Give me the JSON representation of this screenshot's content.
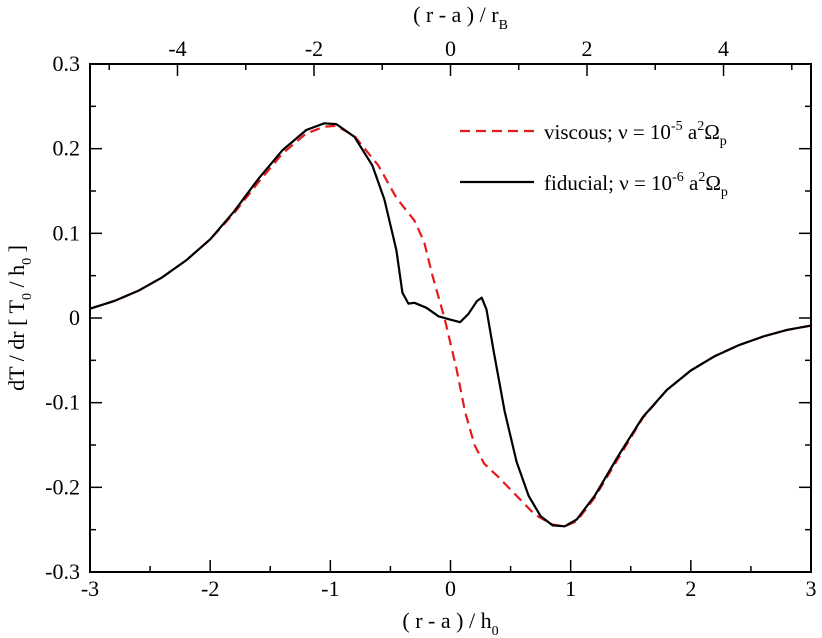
{
  "chart_data": {
    "type": "line",
    "xlabel_main": "( r - a ) / h",
    "xlabel_main_sub": "0",
    "xlabel_top": "( r - a ) / r",
    "xlabel_top_sub": "B",
    "ylabel_main": "dT / dr [ T",
    "ylabel_sub1": "0",
    "ylabel_mid": " / h",
    "ylabel_sub2": "0",
    "ylabel_end": " ]",
    "xlim": [
      -3,
      3
    ],
    "ylim": [
      -0.3,
      0.3
    ],
    "x_ticks": [
      {
        "value": -3,
        "label": "-3"
      },
      {
        "value": -2,
        "label": "-2"
      },
      {
        "value": -1,
        "label": "-1"
      },
      {
        "value": 0,
        "label": "0"
      },
      {
        "value": 1,
        "label": "1"
      },
      {
        "value": 2,
        "label": "2"
      },
      {
        "value": 3,
        "label": "3"
      }
    ],
    "y_ticks": [
      {
        "value": -0.3,
        "label": "-0.3"
      },
      {
        "value": -0.2,
        "label": "-0.2"
      },
      {
        "value": -0.1,
        "label": "-0.1"
      },
      {
        "value": 0,
        "label": "0"
      },
      {
        "value": 0.1,
        "label": "0.1"
      },
      {
        "value": 0.2,
        "label": "0.2"
      },
      {
        "value": 0.3,
        "label": "0.3"
      }
    ],
    "top_ticks": [
      {
        "value": -4,
        "label": "-4"
      },
      {
        "value": -2,
        "label": "-2"
      },
      {
        "value": 0,
        "label": "0"
      },
      {
        "value": 2,
        "label": "2"
      },
      {
        "value": 4,
        "label": "4"
      }
    ],
    "top_axis_scale": 0.568,
    "legend_placement": "top-right",
    "series": [
      {
        "name": "viscous",
        "legend_prefix": "viscous; ν = 10",
        "legend_exp": "-5",
        "legend_mid": " a",
        "legend_exp2": "2",
        "legend_omega": "Ω",
        "legend_sub": "p",
        "color": "#e41a1c",
        "dash": "10,6",
        "points": [
          [
            -3.0,
            0.011
          ],
          [
            -2.8,
            0.02
          ],
          [
            -2.6,
            0.032
          ],
          [
            -2.4,
            0.048
          ],
          [
            -2.2,
            0.068
          ],
          [
            -2.0,
            0.093
          ],
          [
            -1.8,
            0.124
          ],
          [
            -1.6,
            0.16
          ],
          [
            -1.4,
            0.194
          ],
          [
            -1.2,
            0.218
          ],
          [
            -1.05,
            0.226
          ],
          [
            -0.95,
            0.227
          ],
          [
            -0.8,
            0.215
          ],
          [
            -0.6,
            0.18
          ],
          [
            -0.45,
            0.142
          ],
          [
            -0.3,
            0.115
          ],
          [
            -0.22,
            0.09
          ],
          [
            -0.15,
            0.05
          ],
          [
            -0.05,
            0.0
          ],
          [
            0.05,
            -0.06
          ],
          [
            0.12,
            -0.11
          ],
          [
            0.2,
            -0.15
          ],
          [
            0.28,
            -0.172
          ],
          [
            0.4,
            -0.188
          ],
          [
            0.55,
            -0.21
          ],
          [
            0.7,
            -0.232
          ],
          [
            0.85,
            -0.244
          ],
          [
            0.95,
            -0.246
          ],
          [
            1.05,
            -0.24
          ],
          [
            1.2,
            -0.212
          ],
          [
            1.4,
            -0.165
          ],
          [
            1.6,
            -0.118
          ],
          [
            1.8,
            -0.085
          ],
          [
            2.0,
            -0.062
          ],
          [
            2.2,
            -0.045
          ],
          [
            2.4,
            -0.032
          ],
          [
            2.6,
            -0.022
          ],
          [
            2.8,
            -0.014
          ],
          [
            3.0,
            -0.009
          ]
        ]
      },
      {
        "name": "fiducial",
        "legend_prefix": "fiducial; ν = 10",
        "legend_exp": "-6",
        "legend_mid": " a",
        "legend_exp2": "2",
        "legend_omega": "Ω",
        "legend_sub": "p",
        "color": "#000000",
        "dash": "",
        "points": [
          [
            -3.0,
            0.011
          ],
          [
            -2.8,
            0.02
          ],
          [
            -2.6,
            0.032
          ],
          [
            -2.4,
            0.048
          ],
          [
            -2.2,
            0.068
          ],
          [
            -2.0,
            0.093
          ],
          [
            -1.8,
            0.126
          ],
          [
            -1.6,
            0.164
          ],
          [
            -1.4,
            0.198
          ],
          [
            -1.2,
            0.222
          ],
          [
            -1.05,
            0.23
          ],
          [
            -0.95,
            0.229
          ],
          [
            -0.8,
            0.214
          ],
          [
            -0.65,
            0.18
          ],
          [
            -0.55,
            0.14
          ],
          [
            -0.45,
            0.08
          ],
          [
            -0.4,
            0.03
          ],
          [
            -0.35,
            0.017
          ],
          [
            -0.3,
            0.018
          ],
          [
            -0.2,
            0.012
          ],
          [
            -0.1,
            0.002
          ],
          [
            0.0,
            -0.002
          ],
          [
            0.08,
            -0.005
          ],
          [
            0.15,
            0.005
          ],
          [
            0.22,
            0.02
          ],
          [
            0.26,
            0.024
          ],
          [
            0.3,
            0.01
          ],
          [
            0.36,
            -0.04
          ],
          [
            0.45,
            -0.11
          ],
          [
            0.55,
            -0.17
          ],
          [
            0.65,
            -0.21
          ],
          [
            0.75,
            -0.234
          ],
          [
            0.85,
            -0.245
          ],
          [
            0.95,
            -0.246
          ],
          [
            1.05,
            -0.238
          ],
          [
            1.2,
            -0.21
          ],
          [
            1.4,
            -0.162
          ],
          [
            1.6,
            -0.117
          ],
          [
            1.8,
            -0.085
          ],
          [
            2.0,
            -0.062
          ],
          [
            2.2,
            -0.045
          ],
          [
            2.4,
            -0.032
          ],
          [
            2.6,
            -0.022
          ],
          [
            2.8,
            -0.014
          ],
          [
            3.0,
            -0.009
          ]
        ]
      }
    ]
  }
}
